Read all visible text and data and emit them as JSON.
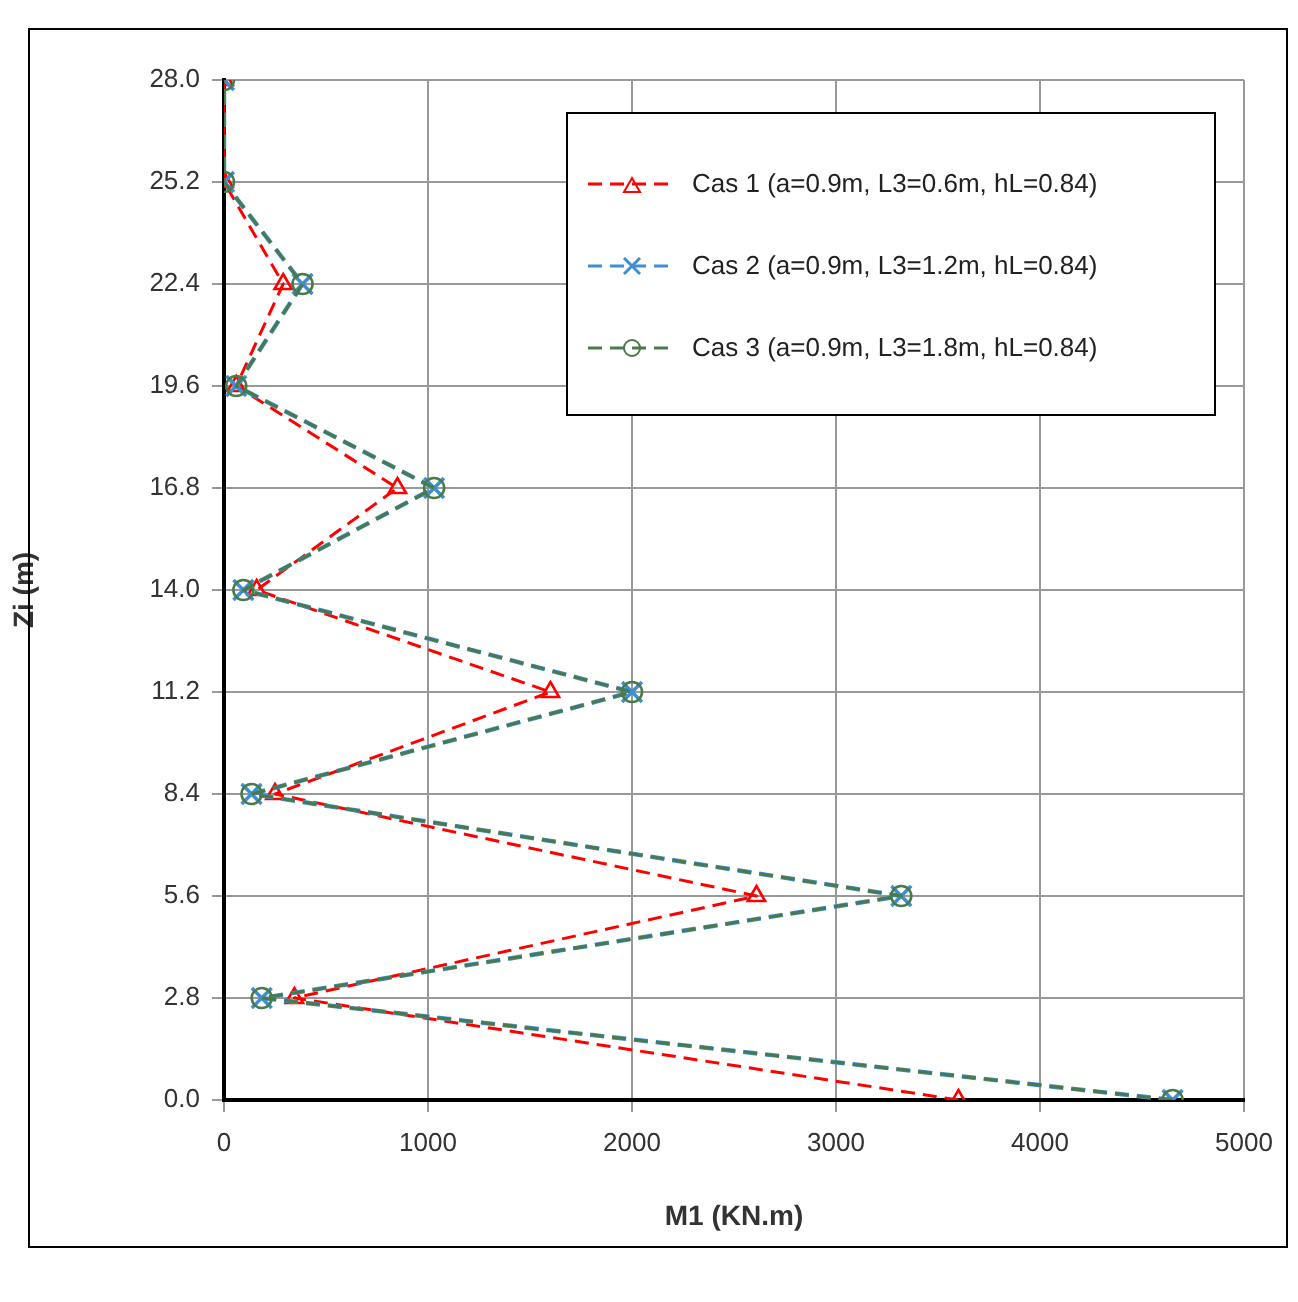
{
  "chart_data": {
    "type": "line",
    "xlabel": "M1 (KN.m)",
    "ylabel": "Zi (m)",
    "xlim": [
      0,
      5000
    ],
    "xticks": [
      0,
      1000,
      2000,
      3000,
      4000,
      5000
    ],
    "ylim": [
      0,
      28
    ],
    "yticks": [
      {
        "value": 0,
        "label": "0.0"
      },
      {
        "value": 2.8,
        "label": "2.8"
      },
      {
        "value": 5.6,
        "label": "5.6"
      },
      {
        "value": 8.4,
        "label": "8.4"
      },
      {
        "value": 11.2,
        "label": "11.2"
      },
      {
        "value": 14,
        "label": "14.0"
      },
      {
        "value": 16.8,
        "label": "16.8"
      },
      {
        "value": 19.6,
        "label": "19.6"
      },
      {
        "value": 22.4,
        "label": "22.4"
      },
      {
        "value": 25.2,
        "label": "25.2"
      },
      {
        "value": 28,
        "label": "28.0"
      }
    ],
    "grid": true,
    "legend": "top right",
    "line_style": "dashed",
    "series": [
      {
        "name": "Cas 1 (a=0.9m, L3=0.6m, hL=0.84)",
        "color": "#ff0000",
        "marker": "triangle",
        "x": [
          3600,
          345,
          2610,
          250,
          1600,
          160,
          850,
          60,
          290,
          0,
          0
        ],
        "values": [
          0,
          2.8,
          5.6,
          8.4,
          11.2,
          14,
          16.8,
          19.6,
          22.4,
          25.2,
          28
        ]
      },
      {
        "name": "Cas 2 (a=0.9m, L3=1.2m, hL=0.84)",
        "color": "#3d8fd1",
        "marker": "cross",
        "x": [
          4650,
          185,
          3320,
          135,
          2000,
          95,
          1030,
          60,
          385,
          0,
          0
        ],
        "values": [
          0,
          2.8,
          5.6,
          8.4,
          11.2,
          14,
          16.8,
          19.6,
          22.4,
          25.2,
          28
        ]
      },
      {
        "name": "Cas 3 (a=0.9m, L3=1.8m, hL=0.84)",
        "color": "#4a7a4a",
        "marker": "circle",
        "x": [
          4650,
          185,
          3320,
          135,
          2000,
          95,
          1030,
          60,
          385,
          0,
          0
        ],
        "values": [
          0,
          2.8,
          5.6,
          8.4,
          11.2,
          14,
          16.8,
          19.6,
          22.4,
          25.2,
          28
        ]
      }
    ]
  }
}
